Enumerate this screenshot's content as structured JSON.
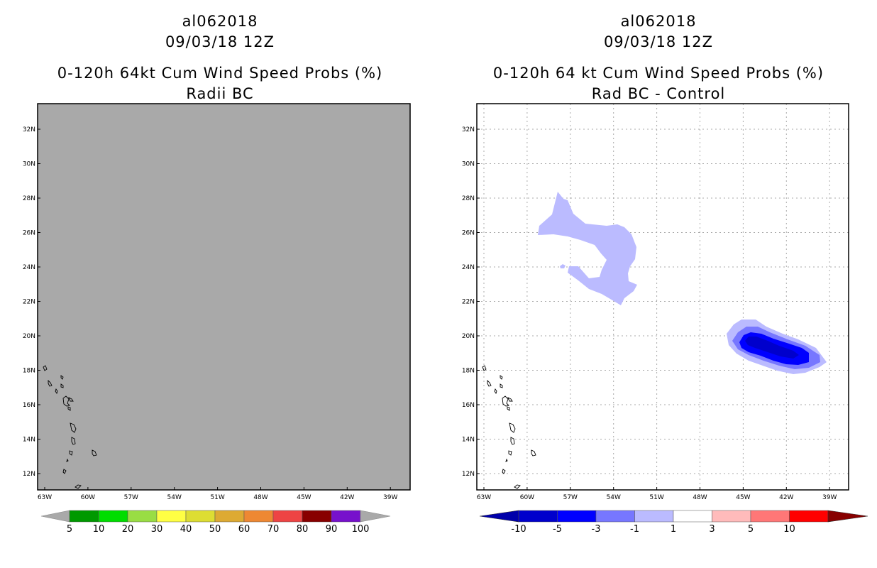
{
  "left_panel": {
    "storm_id": "al062018",
    "datetime": "09/03/18 12Z",
    "product": "0-120h 64kt Cum Wind Speed Probs (%)",
    "subtitle": "Radii BC",
    "fill_color": "#a9a9a9",
    "colorbar": {
      "labels": [
        "5",
        "10",
        "20",
        "30",
        "40",
        "50",
        "60",
        "70",
        "80",
        "90",
        "100"
      ],
      "colors": [
        "#009900",
        "#00dd00",
        "#99dd44",
        "#ffff44",
        "#dddd33",
        "#ddaa33",
        "#ee8833",
        "#ee4444",
        "#880000",
        "#7711cc"
      ],
      "end_color": "#a9a9a9"
    }
  },
  "right_panel": {
    "storm_id": "al062018",
    "datetime": "09/03/18 12Z",
    "product": "0-120h 64 kt Cum Wind Speed Probs (%)",
    "subtitle": "Rad BC - Control",
    "colorbar": {
      "labels": [
        "-10",
        "-5",
        "-3",
        "-1",
        "1",
        "3",
        "5",
        "10"
      ],
      "colors": [
        "#0000cc",
        "#0000ff",
        "#7777ff",
        "#bbbbff",
        "#ffffff",
        "#ffbbbb",
        "#ff7777",
        "#ff0000"
      ],
      "end_low": "#0000aa",
      "end_high": "#880000"
    }
  },
  "map": {
    "lat_labels": [
      "32N",
      "30N",
      "28N",
      "26N",
      "24N",
      "22N",
      "20N",
      "18N",
      "16N",
      "14N",
      "12N"
    ],
    "lat_values": [
      32,
      30,
      28,
      26,
      24,
      22,
      20,
      18,
      16,
      14,
      12
    ],
    "lon_labels": [
      "63W",
      "60W",
      "57W",
      "54W",
      "51W",
      "48W",
      "45W",
      "42W",
      "39W"
    ],
    "lon_values": [
      -63,
      -60,
      -57,
      -54,
      -51,
      -48,
      -45,
      -42,
      -39
    ]
  }
}
